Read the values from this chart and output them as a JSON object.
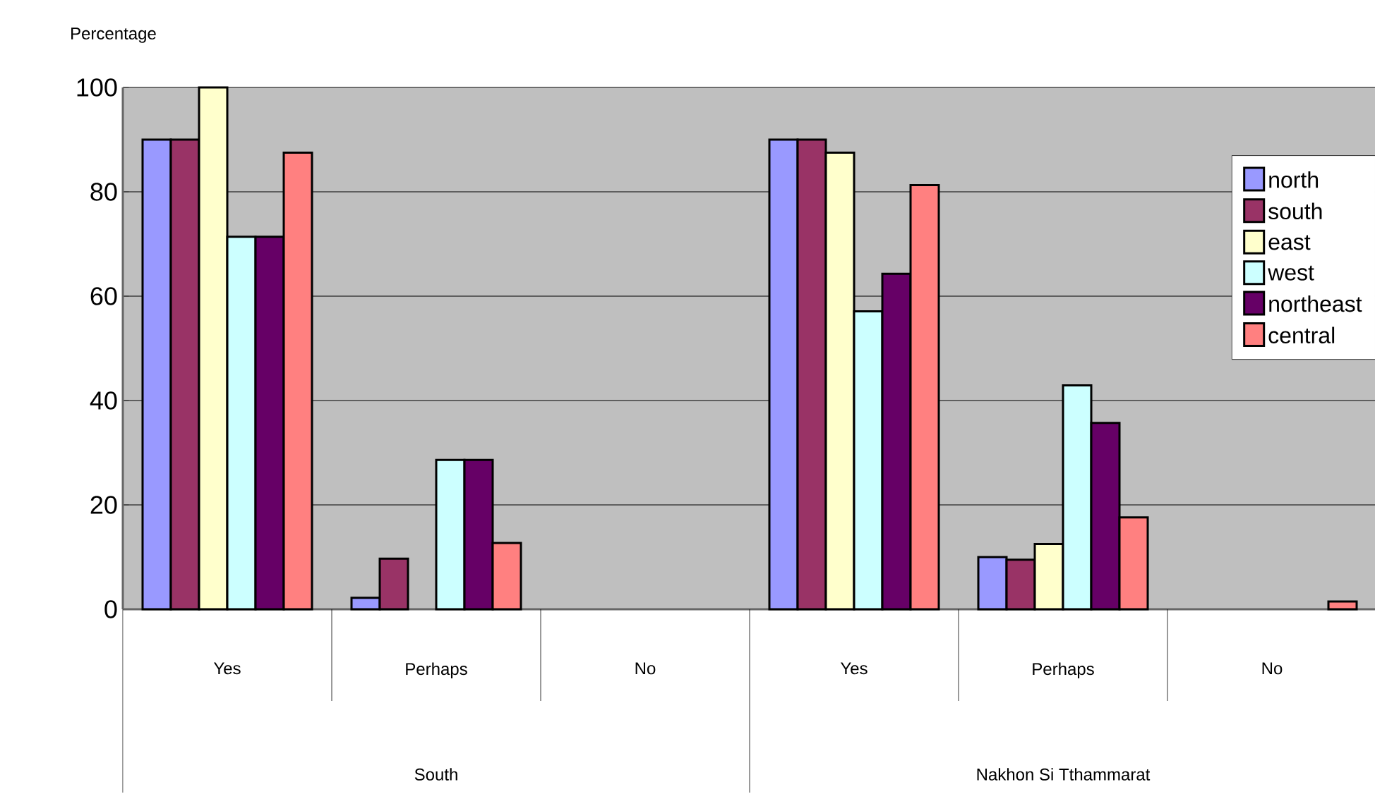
{
  "chart_data": {
    "type": "bar",
    "ylabel": "Percentage",
    "categories": [
      "Yes",
      "Perhaps",
      "No",
      "Yes",
      "Perhaps",
      "No"
    ],
    "annotations": [
      "South",
      "Nakhon Si Tthammarat"
    ],
    "series": [
      {
        "name": "north",
        "color": "#9999ff",
        "values": [
          90,
          2.2,
          null,
          90,
          10,
          null
        ]
      },
      {
        "name": "south",
        "color": "#993366",
        "values": [
          90,
          9.7,
          null,
          90,
          9.5,
          null
        ]
      },
      {
        "name": "east",
        "color": "#ffffcc",
        "values": [
          100,
          null,
          null,
          87.5,
          12.5,
          null
        ]
      },
      {
        "name": "west",
        "color": "#ccffff",
        "values": [
          71.4,
          28.6,
          null,
          57.1,
          42.9,
          null
        ]
      },
      {
        "name": "northeast",
        "color": "#660066",
        "values": [
          71.4,
          28.6,
          null,
          64.3,
          35.7,
          null
        ]
      },
      {
        "name": "central",
        "color": "#ff8080",
        "values": [
          87.5,
          12.7,
          null,
          81.3,
          17.6,
          1.5
        ]
      }
    ],
    "ylim": [
      0,
      100
    ],
    "yticks": [
      0,
      20,
      40,
      60,
      80,
      100
    ],
    "grid": "y",
    "legend": "top right"
  }
}
